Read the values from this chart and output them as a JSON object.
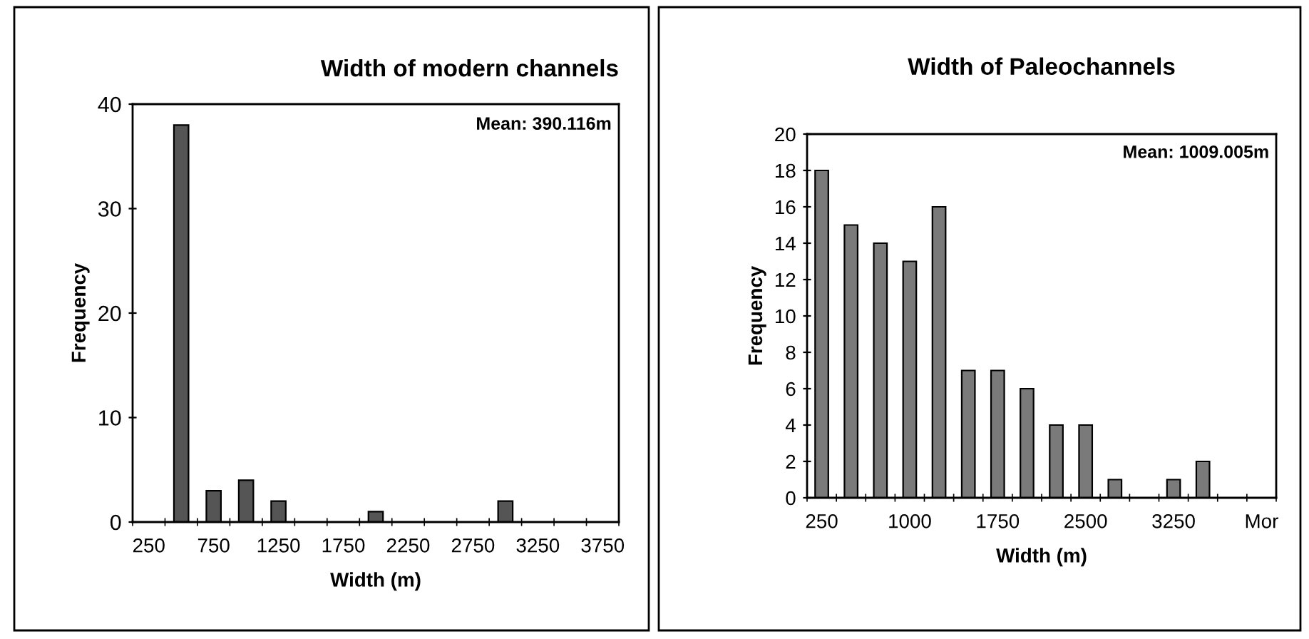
{
  "chart_data": [
    {
      "type": "bar",
      "title": "Width of modern channels",
      "xlabel": "Width (m)",
      "ylabel": "Frequency",
      "categories": [
        "250",
        null,
        "750",
        null,
        "1250",
        null,
        "1750",
        null,
        "2250",
        null,
        "2750",
        null,
        "3250",
        null,
        "3750"
      ],
      "values": [
        0,
        38,
        3,
        4,
        2,
        0,
        0,
        1,
        0,
        0,
        0,
        2,
        0,
        0,
        0
      ],
      "color": "#555555",
      "ylim": [
        0,
        40
      ],
      "yticks": [
        0,
        10,
        20,
        30,
        40
      ],
      "grid": false,
      "legend": false,
      "annotations": [
        "Mean: 390.116m"
      ]
    },
    {
      "type": "bar",
      "title": "Width of Paleochannels",
      "xlabel": "Width (m)",
      "ylabel": "Frequency",
      "categories": [
        "250",
        null,
        null,
        "1000",
        null,
        null,
        "1750",
        null,
        null,
        "2500",
        null,
        null,
        "3250",
        null,
        null,
        "Mor"
      ],
      "values": [
        18,
        15,
        14,
        13,
        16,
        7,
        7,
        6,
        4,
        4,
        1,
        0,
        1,
        2,
        0,
        0
      ],
      "color": "#7a7a7a",
      "ylim": [
        0,
        20
      ],
      "yticks": [
        0,
        2,
        4,
        6,
        8,
        10,
        12,
        14,
        16,
        18,
        20
      ],
      "grid": false,
      "legend": false,
      "annotations": [
        "Mean: 1009.005m"
      ]
    }
  ]
}
